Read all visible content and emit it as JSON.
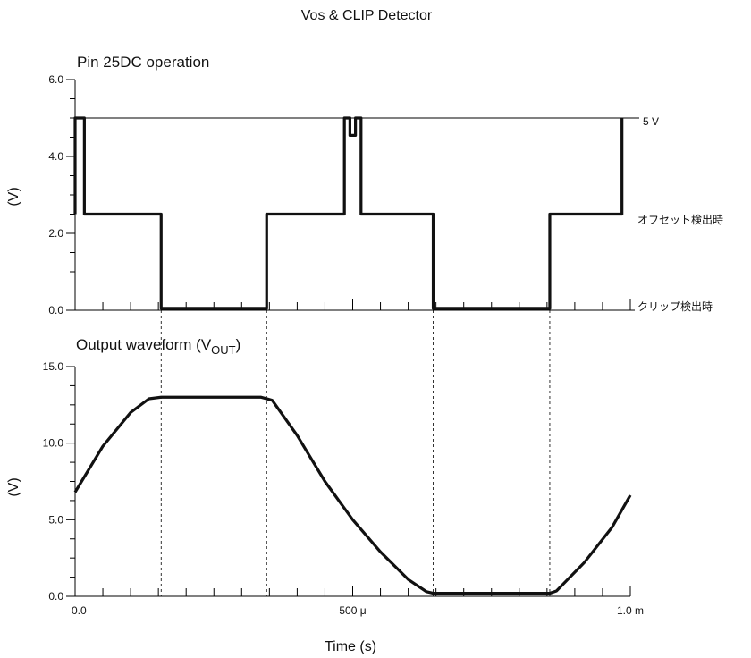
{
  "figure_title": "Vos & CLIP Detector",
  "chart_data": [
    {
      "type": "line",
      "title": "Pin 25DC operation",
      "xlabel": "",
      "ylabel": "(V)",
      "xlim": [
        0,
        0.001
      ],
      "ylim": [
        0,
        6
      ],
      "yticks": [
        0,
        2,
        4,
        6
      ],
      "ytick_labels": [
        "0.0",
        "2.0",
        "4.0",
        "6.0"
      ],
      "grid": false,
      "series": [
        {
          "x": [
            0,
            0,
            1.67e-05,
            1.67e-05,
            0.000155,
            0.000155,
            0.000345,
            0.000345,
            0.000485,
            0.000485,
            0.000495,
            0.000495,
            0.000505,
            0.000505,
            0.000515,
            0.000515,
            0.000645,
            0.000645,
            0.000855,
            0.000855,
            0.000985,
            0.000985
          ],
          "y": [
            2.5,
            5.0,
            5.0,
            2.5,
            2.5,
            0.05,
            0.05,
            2.5,
            2.5,
            5.0,
            5.0,
            4.55,
            4.55,
            5.0,
            5.0,
            2.5,
            2.5,
            0.05,
            0.05,
            2.5,
            2.5,
            5.0
          ]
        }
      ],
      "reference_lines": [
        {
          "y": 5.0,
          "label": "5 V"
        }
      ],
      "annotations": [
        {
          "text": "オフセット検出時",
          "y": 2.5
        },
        {
          "text": "クリップ検出時",
          "y": 0.0
        }
      ]
    },
    {
      "type": "line",
      "title": "Output waveform (V",
      "title_subscript": "OUT",
      "title_suffix": ")",
      "xlabel": "Time (s)",
      "ylabel": "(V)",
      "xlim": [
        0,
        0.001
      ],
      "ylim": [
        0,
        15
      ],
      "xticks": [
        0,
        0.0005,
        0.001
      ],
      "xtick_labels": [
        "0.0",
        "500 μ",
        "1.0 m"
      ],
      "yticks": [
        0,
        5,
        10,
        15
      ],
      "ytick_labels": [
        "0.0",
        "5.0",
        "10.0",
        "15.0"
      ],
      "grid": false,
      "series": [
        {
          "x": [
            0,
            5e-05,
            0.0001,
            0.000133,
            0.000155,
            0.000335,
            0.000345,
            0.000355,
            0.0004,
            0.00045,
            0.0005,
            0.00055,
            0.0006,
            0.000633,
            0.000645,
            0.000667,
            0.000855,
            0.000867,
            0.000917,
            0.000967,
            0.001
          ],
          "y": [
            6.8,
            9.8,
            12.0,
            12.9,
            13.0,
            13.0,
            12.9,
            12.8,
            10.5,
            7.5,
            5.0,
            2.9,
            1.1,
            0.3,
            0.2,
            0.2,
            0.2,
            0.35,
            2.2,
            4.5,
            6.6
          ]
        }
      ]
    }
  ],
  "guide_times": [
    0.000155,
    0.000345,
    0.000645,
    0.000855
  ]
}
